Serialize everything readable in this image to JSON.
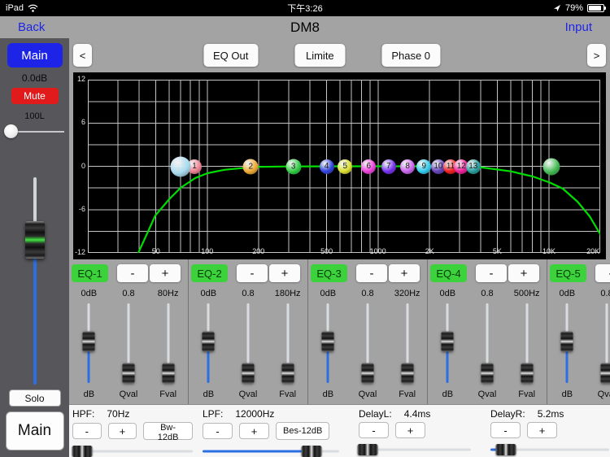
{
  "colors": {
    "accent_blue": "#1d24e8",
    "mute_red": "#e11b1b",
    "eq_green": "#3bd23b",
    "track_blue": "#2b6fe3",
    "curve_green": "#00dd00"
  },
  "status_bar": {
    "device_label": "iPad",
    "time": "下午3:26",
    "battery_percent": "79%"
  },
  "nav": {
    "back_label": "Back",
    "title": "DM8",
    "input_label": "Input"
  },
  "sidebar": {
    "channel_button_label": "Main",
    "gain_value": "0.0dB",
    "mute_button_label": "Mute",
    "pan_value": "100L",
    "pan_pos": 0,
    "fader_pos": 30,
    "solo_button_label": "Solo",
    "output_button_label": "Main"
  },
  "toolbar": {
    "prev_label": "<",
    "buttons": [
      "EQ Out",
      "Limite",
      "Phase 0"
    ],
    "next_label": ">"
  },
  "graph": {
    "y_ticks": [
      "12",
      "6",
      "0",
      "-6",
      "-12"
    ],
    "x_ticks": [
      {
        "label": "50",
        "pos": 13.3
      },
      {
        "label": "100",
        "pos": 23.3
      },
      {
        "label": "200",
        "pos": 33.3
      },
      {
        "label": "500",
        "pos": 46.6
      },
      {
        "label": "1000",
        "pos": 56.6
      },
      {
        "label": "2K",
        "pos": 66.7
      },
      {
        "label": "5K",
        "pos": 79.9
      },
      {
        "label": "10K",
        "pos": 90
      },
      {
        "label": "20K",
        "pos": 98.6
      }
    ],
    "nodes": [
      {
        "name": "eq-node-1",
        "label": "1",
        "x": 20.8,
        "color": "#ef8293",
        "size": 18,
        "z": 2
      },
      {
        "name": "hpf-node",
        "label": "",
        "x": 18.1,
        "color": "#a9daee",
        "size": 25,
        "z": 3
      },
      {
        "name": "eq-node-2",
        "label": "2",
        "x": 31.8,
        "color": "#eeaa33",
        "size": 19,
        "z": 4
      },
      {
        "name": "eq-node-3",
        "label": "3",
        "x": 40.1,
        "color": "#33cc44",
        "size": 19,
        "z": 5
      },
      {
        "name": "eq-node-4",
        "label": "4",
        "x": 46.6,
        "color": "#3346dd",
        "size": 18,
        "z": 6
      },
      {
        "name": "eq-node-5",
        "label": "5",
        "x": 50.2,
        "color": "#dde033",
        "size": 18,
        "z": 7
      },
      {
        "name": "eq-node-6",
        "label": "6",
        "x": 54.8,
        "color": "#ee44dd",
        "size": 18,
        "z": 8
      },
      {
        "name": "eq-node-7",
        "label": "7",
        "x": 58.7,
        "color": "#7733ee",
        "size": 18,
        "z": 9
      },
      {
        "name": "eq-node-8",
        "label": "8",
        "x": 62.4,
        "color": "#cc66ee",
        "size": 18,
        "z": 10
      },
      {
        "name": "eq-node-9",
        "label": "9",
        "x": 65.6,
        "color": "#33ccee",
        "size": 18,
        "z": 11
      },
      {
        "name": "eq-node-10",
        "label": "10",
        "x": 68.4,
        "color": "#6644bb",
        "size": 18,
        "z": 12
      },
      {
        "name": "eq-node-11",
        "label": "11",
        "x": 70.8,
        "color": "#ee2222",
        "size": 18,
        "z": 13
      },
      {
        "name": "eq-node-12",
        "label": "12",
        "x": 72.9,
        "color": "#ee2299",
        "size": 18,
        "z": 14
      },
      {
        "name": "eq-node-13",
        "label": "13",
        "x": 75.2,
        "color": "#2a9f9f",
        "size": 18,
        "z": 15
      },
      {
        "name": "lpf-node",
        "label": "",
        "x": 90.5,
        "color": "#44bb55",
        "size": 21,
        "z": 2
      }
    ]
  },
  "eq": {
    "minus_label": "-",
    "plus_label": "+",
    "slider_labels": [
      "dB",
      "Qval",
      "Fval"
    ],
    "bands": [
      {
        "name": "EQ-1",
        "gain": "0dB",
        "q": "0.8",
        "freq": "80Hz",
        "gain_pos": 48,
        "q_pos": 86,
        "f_pos": 86
      },
      {
        "name": "EQ-2",
        "gain": "0dB",
        "q": "0.8",
        "freq": "180Hz",
        "gain_pos": 48,
        "q_pos": 86,
        "f_pos": 86
      },
      {
        "name": "EQ-3",
        "gain": "0dB",
        "q": "0.8",
        "freq": "320Hz",
        "gain_pos": 48,
        "q_pos": 86,
        "f_pos": 86
      },
      {
        "name": "EQ-4",
        "gain": "0dB",
        "q": "0.8",
        "freq": "500Hz",
        "gain_pos": 48,
        "q_pos": 86,
        "f_pos": 86
      },
      {
        "name": "EQ-5",
        "gain": "0dB",
        "q": "0.8",
        "freq": "",
        "gain_pos": 48,
        "q_pos": 86,
        "f_pos": 86
      }
    ]
  },
  "bottom": {
    "minus_label": "-",
    "plus_label": "+",
    "groups": [
      {
        "label": "HPF:",
        "value": "70Hz",
        "type_button": "Bw-12dB",
        "slider_pos": 8
      },
      {
        "label": "LPF:",
        "value": "12000Hz",
        "type_button": "Bes-12dB",
        "slider_pos": 80
      },
      {
        "label": "DelayL:",
        "value": "4.4ms",
        "type_button": "",
        "slider_pos": 8
      },
      {
        "label": "DelayR:",
        "value": "5.2ms",
        "type_button": "",
        "slider_pos": 13
      }
    ]
  }
}
